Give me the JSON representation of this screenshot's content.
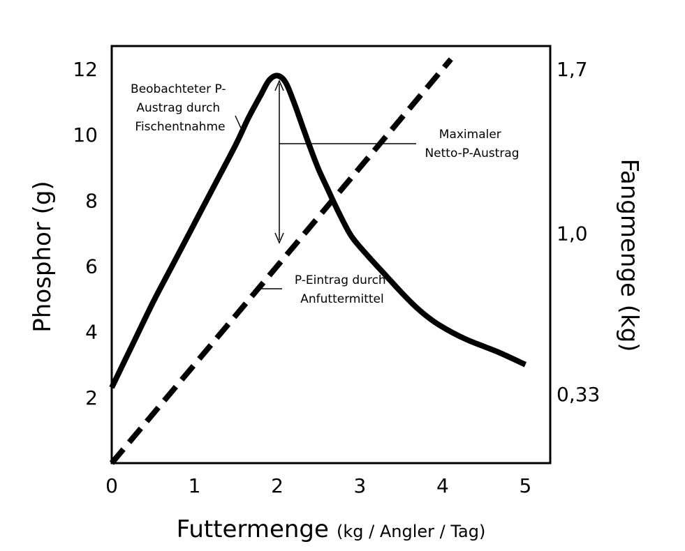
{
  "chart_data": {
    "type": "line",
    "xlabel": "Futtermenge",
    "xlabel_unit": "(kg / Angler / Tag)",
    "ylabel": "Phosphor (g)",
    "y2label": "Fangmenge (kg)",
    "xlim": [
      0,
      5.3
    ],
    "ylim": [
      0,
      12.7
    ],
    "x_ticks": [
      "0",
      "1",
      "2",
      "3",
      "4",
      "5"
    ],
    "x_tick_values": [
      0,
      1,
      2,
      3,
      4,
      5
    ],
    "y_ticks": [
      "2",
      "4",
      "6",
      "8",
      "10",
      "12"
    ],
    "y_tick_values": [
      2,
      4,
      6,
      8,
      10,
      12
    ],
    "y2_ticks": [
      "0,33",
      "1,0",
      "1,7"
    ],
    "y2_tick_values": [
      2.1,
      7,
      12
    ],
    "grid": false,
    "legend": "none",
    "series": [
      {
        "style": "solid",
        "color": "#000000",
        "x": [
          0.0,
          0.25,
          0.5,
          0.75,
          1.0,
          1.25,
          1.5,
          1.65,
          1.8,
          1.9,
          2.0,
          2.1,
          2.2,
          2.3,
          2.4,
          2.5,
          2.6,
          2.75,
          2.9,
          3.1,
          3.3,
          3.5,
          3.7,
          3.9,
          4.1,
          4.3,
          4.5,
          4.7,
          5.0
        ],
        "y": [
          2.3,
          3.6,
          4.9,
          6.1,
          7.3,
          8.5,
          9.7,
          10.5,
          11.2,
          11.65,
          11.8,
          11.6,
          11.0,
          10.3,
          9.6,
          8.95,
          8.4,
          7.6,
          6.9,
          6.3,
          5.75,
          5.2,
          4.7,
          4.3,
          4.0,
          3.75,
          3.55,
          3.35,
          3.0
        ]
      },
      {
        "style": "dashed",
        "color": "#000000",
        "x": [
          0.0,
          4.1
        ],
        "y": [
          0.0,
          12.3
        ]
      }
    ],
    "annotations": [
      {
        "lines": [
          "Beobachteter P-",
          "Austrag durch",
          "Fischentnahme"
        ]
      },
      {
        "lines": [
          "Maximaler",
          "Netto-P-Austrag"
        ]
      },
      {
        "lines": [
          "P-Eintrag durch",
          "Anfuttermittel"
        ]
      }
    ]
  }
}
